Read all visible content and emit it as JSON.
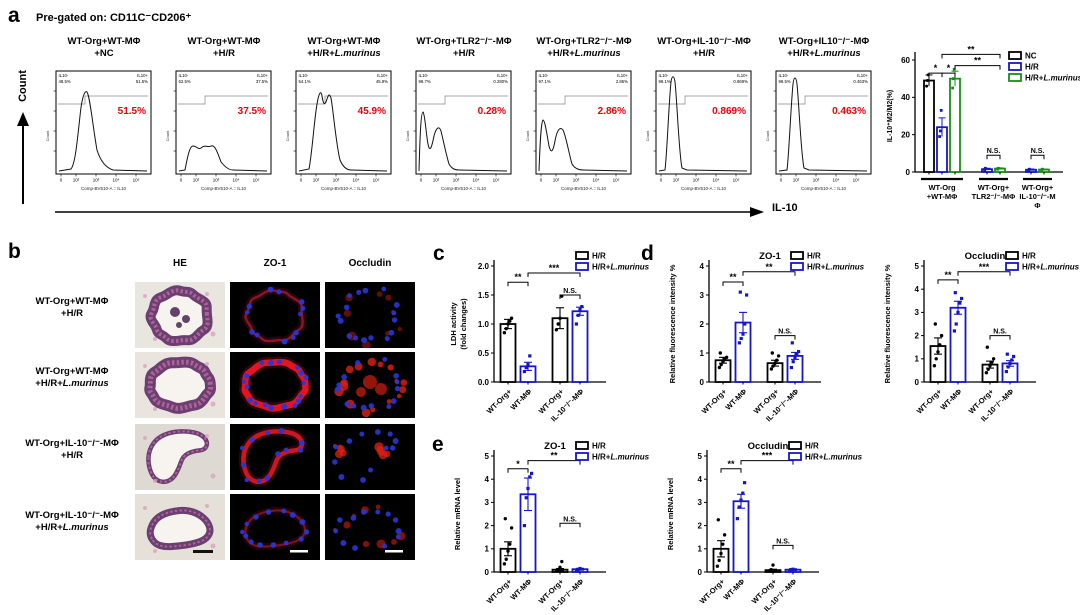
{
  "panel_a": {
    "label": "a",
    "pregate": "Pre-gated on: CD11C⁻CD206⁺",
    "count_label": "Count",
    "xarrow_label": "IL-10",
    "flow_xaxis": "Comp-BV510-A :: IL10",
    "flow_count_label": "Count",
    "flow_xticks": [
      "0",
      "10²",
      "10³",
      "10⁴",
      "10⁵"
    ],
    "flow_plots": [
      {
        "title1": "WT-Org+WT-MΦ",
        "title2": "+NC",
        "title2_italic": "",
        "neg_label": "IL10-",
        "neg_pct": "48.5%",
        "pos_label": "IL10+",
        "pos_pct": "51.5%",
        "main_pct": "51.5%",
        "shape": "broad"
      },
      {
        "title1": "WT-Org+WT-MΦ",
        "title2": "+H/R",
        "title2_italic": "",
        "neg_label": "IL10-",
        "neg_pct": "62.5%",
        "pos_label": "IL10+",
        "pos_pct": "37.5%",
        "main_pct": "37.5%",
        "shape": "low"
      },
      {
        "title1": "WT-Org+WT-MΦ",
        "title2": "+H/R+",
        "title2_italic": "L.murinus",
        "neg_label": "IL10-",
        "neg_pct": "54.1%",
        "pos_label": "IL10+",
        "pos_pct": "45.9%",
        "main_pct": "45.9%",
        "shape": "notched"
      },
      {
        "title1": "WT-Org+TLR2⁻/⁻-MΦ",
        "title2": "+H/R",
        "title2_italic": "",
        "neg_label": "IL10-",
        "neg_pct": "99.7%",
        "pos_label": "IL10+",
        "pos_pct": "0.280%",
        "main_pct": "0.28%",
        "shape": "smallbimodal"
      },
      {
        "title1": "WT-Org+TLR2⁻/⁻-MΦ",
        "title2": "+H/R+",
        "title2_italic": "L.murinus",
        "neg_label": "IL10-",
        "neg_pct": "97.1%",
        "pos_label": "IL10+",
        "pos_pct": "2.86%",
        "main_pct": "2.86%",
        "shape": "bimodal"
      },
      {
        "title1": "WT-Org+IL-10⁻/⁻-MΦ",
        "title2": "+H/R",
        "title2_italic": "",
        "neg_label": "IL10-",
        "neg_pct": "99.1%",
        "pos_label": "IL10+",
        "pos_pct": "0.869%",
        "main_pct": "0.869%",
        "shape": "tall"
      },
      {
        "title1": "WT-Org+IL10⁻/⁻-MΦ",
        "title2": "+H/R+",
        "title2_italic": "L.murinus",
        "neg_label": "IL10-",
        "neg_pct": "99.5%",
        "pos_label": "IL10+",
        "pos_pct": "0.463%",
        "main_pct": "0.463%",
        "shape": "tall2"
      }
    ]
  },
  "panel_b": {
    "label": "b",
    "columns": [
      "HE",
      "ZO-1",
      "Occludin"
    ],
    "rows": [
      {
        "label1": "WT-Org+WT-MΦ",
        "label2": "+H/R",
        "label2_italic": ""
      },
      {
        "label1": "WT-Org+WT-MΦ",
        "label2": "+H/R+",
        "label2_italic": "L.murinus"
      },
      {
        "label1": "WT-Org+IL-10⁻/⁻-MΦ",
        "label2": "+H/R",
        "label2_italic": ""
      },
      {
        "label1": "WT-Org+IL-10⁻/⁻-MΦ",
        "label2": "+H/R+",
        "label2_italic": "L.murinus"
      }
    ]
  },
  "panel_letters": {
    "c": "c",
    "d": "d",
    "e": "e"
  },
  "chart_data": [
    {
      "type": "bar",
      "id": "a",
      "kind": "grouped",
      "ylabel": [
        "IL-10⁺M2/M2(%)"
      ],
      "ylim": [
        0,
        60
      ],
      "yticks": [
        "0",
        "20",
        "40",
        "60"
      ],
      "legend": [
        {
          "plain": "NC",
          "italic": "",
          "color": "#000000"
        },
        {
          "plain": "H/R",
          "italic": "",
          "color": "#1515cc"
        },
        {
          "plain": "H/R+",
          "italic": "L.murinus",
          "color": "#149114"
        }
      ],
      "groups": [
        {
          "lines": [
            "WT-Org",
            "+WT-MΦ"
          ]
        },
        {
          "lines": [
            "WT-Org+",
            "TLR2⁻/⁻-MΦ"
          ]
        },
        {
          "lines": [
            "WT-Org+",
            "IL-10⁻/⁻-M",
            "Φ"
          ]
        }
      ],
      "bars": [
        {
          "g": 0,
          "s": 0,
          "v": 49,
          "e": 3,
          "dots": [
            46,
            49,
            52
          ]
        },
        {
          "g": 0,
          "s": 1,
          "v": 24,
          "e": 5,
          "dots": [
            19,
            22,
            33
          ]
        },
        {
          "g": 0,
          "s": 2,
          "v": 50,
          "e": 4,
          "dots": [
            45,
            50,
            55
          ]
        },
        {
          "g": 1,
          "s": 1,
          "v": 1.5,
          "e": 0.5,
          "dots": [
            1,
            2
          ]
        },
        {
          "g": 1,
          "s": 2,
          "v": 1.8,
          "e": 0.4,
          "dots": [
            1.5,
            2
          ]
        },
        {
          "g": 2,
          "s": 1,
          "v": 1.2,
          "e": 0.4,
          "dots": [
            1,
            1.5
          ]
        },
        {
          "g": 2,
          "s": 2,
          "v": 1.3,
          "e": 0.3,
          "dots": [
            1,
            1.5
          ]
        }
      ],
      "brackets": [
        {
          "a": 0,
          "b": 1,
          "label": "*",
          "vy": 53
        },
        {
          "a": 1,
          "b": 2,
          "label": "*",
          "vy": 53
        },
        {
          "a": 1,
          "b": 4,
          "label": "**",
          "vy": 63
        },
        {
          "a": 2,
          "b": 4,
          "label": "**",
          "vy": 57
        },
        {
          "a": 3,
          "b": 4,
          "label": "N.S.",
          "vy": 9
        },
        {
          "a": 5,
          "b": 6,
          "label": "N.S.",
          "vy": 9
        }
      ]
    },
    {
      "type": "bar",
      "id": "c",
      "kind": "pairs",
      "title": "",
      "ylabel": [
        "LDH activity",
        "(fold changes)"
      ],
      "ylim": [
        0,
        2
      ],
      "yticks": [
        "0.0",
        "0.5",
        "1.0",
        "1.5",
        "2.0"
      ],
      "categories": [
        "WT-Org+",
        "WT-MΦ",
        "WT-Org+",
        "IL-10⁻/⁻-MΦ"
      ],
      "legend": [
        {
          "plain": "H/R",
          "italic": "",
          "color": "#000000"
        },
        {
          "plain": "H/R+",
          "italic": "L.murinus",
          "color": "#1515cc"
        }
      ],
      "colors": [
        "#000000",
        "#1515cc",
        "#000000",
        "#1515cc"
      ],
      "values": [
        1.0,
        0.27,
        1.1,
        1.22
      ],
      "errors": [
        0.08,
        0.07,
        0.18,
        0.07
      ],
      "dots": [
        [
          0.85,
          0.92,
          1.0,
          1.05,
          1.1
        ],
        [
          0.18,
          0.25,
          0.3,
          0.45
        ],
        [
          0.9,
          1.0,
          1.1,
          1.48
        ],
        [
          1.0,
          1.15,
          1.25,
          1.3
        ]
      ],
      "brackets": [
        {
          "a": 0,
          "b": 1,
          "label": "**",
          "vy": 1.72
        },
        {
          "a": 1,
          "b": 3,
          "label": "***",
          "vy": 1.88
        },
        {
          "a": 2,
          "b": 3,
          "label": "N.S.",
          "vy": 1.5
        }
      ]
    },
    {
      "type": "bar",
      "id": "d1",
      "kind": "pairs",
      "title": "ZO-1",
      "ylabel": [
        "Relative fluorescence intensity %"
      ],
      "ylim": [
        0,
        4
      ],
      "yticks": [
        "0",
        "1",
        "2",
        "3",
        "4"
      ],
      "categories": [
        "WT-Org+",
        "WT-MΦ",
        "WT-Org+",
        "IL-10⁻/⁻-MΦ"
      ],
      "legend": [
        {
          "plain": "H/R",
          "italic": "",
          "color": "#000000"
        },
        {
          "plain": "H/R+",
          "italic": "L.murinus",
          "color": "#1515cc"
        }
      ],
      "colors": [
        "#000000",
        "#1515cc",
        "#000000",
        "#1515cc"
      ],
      "values": [
        0.75,
        2.05,
        0.65,
        0.9
      ],
      "errors": [
        0.1,
        0.35,
        0.1,
        0.12
      ],
      "dots": [
        [
          0.5,
          0.6,
          0.7,
          0.78,
          0.85,
          1.0
        ],
        [
          1.35,
          1.5,
          1.65,
          2.0,
          3.0,
          3.1
        ],
        [
          0.45,
          0.55,
          0.65,
          0.75,
          0.9,
          1.0
        ],
        [
          0.5,
          0.7,
          0.85,
          0.95,
          1.05,
          1.35
        ]
      ],
      "brackets": [
        {
          "a": 0,
          "b": 1,
          "label": "**",
          "vy": 3.45
        },
        {
          "a": 1,
          "b": 3,
          "label": "**",
          "vy": 3.8
        },
        {
          "a": 2,
          "b": 3,
          "label": "N.S.",
          "vy": 1.6
        }
      ]
    },
    {
      "type": "bar",
      "id": "d2",
      "kind": "pairs",
      "title": "Occludin",
      "ylabel": [
        "Relative fluorescence intensity %"
      ],
      "ylim": [
        0,
        5
      ],
      "yticks": [
        "0",
        "1",
        "2",
        "3",
        "4",
        "5"
      ],
      "categories": [
        "WT-Org+",
        "WT-MΦ",
        "WT-Org+",
        "IL-10⁻/⁻-MΦ"
      ],
      "legend": [
        {
          "plain": "H/R",
          "italic": "",
          "color": "#000000"
        },
        {
          "plain": "H/R+",
          "italic": "L.murinus",
          "color": "#1515cc"
        }
      ],
      "colors": [
        "#000000",
        "#1515cc",
        "#000000",
        "#1515cc"
      ],
      "values": [
        1.55,
        3.2,
        0.75,
        0.8
      ],
      "errors": [
        0.35,
        0.28,
        0.15,
        0.12
      ],
      "dots": [
        [
          0.7,
          1.0,
          1.3,
          1.6,
          2.0,
          2.5
        ],
        [
          2.2,
          2.5,
          3.0,
          3.4,
          3.6,
          3.85
        ],
        [
          0.4,
          0.55,
          0.7,
          0.85,
          1.0,
          1.5
        ],
        [
          0.45,
          0.65,
          0.8,
          0.95,
          1.1,
          1.2
        ]
      ],
      "brackets": [
        {
          "a": 0,
          "b": 1,
          "label": "**",
          "vy": 4.4
        },
        {
          "a": 1,
          "b": 3,
          "label": "***",
          "vy": 4.75
        },
        {
          "a": 2,
          "b": 3,
          "label": "N.S.",
          "vy": 2.0
        }
      ]
    },
    {
      "type": "bar",
      "id": "e1",
      "kind": "pairs",
      "title": "ZO-1",
      "ylabel": [
        "Relative mRNA level"
      ],
      "ylim": [
        0,
        5
      ],
      "yticks": [
        "0",
        "1",
        "2",
        "3",
        "4",
        "5"
      ],
      "categories": [
        "WT-Org+",
        "WT-MΦ",
        "WT-Org+",
        "IL-10⁻/⁻-MΦ"
      ],
      "legend": [
        {
          "plain": "H/R",
          "italic": "",
          "color": "#000000"
        },
        {
          "plain": "H/R+",
          "italic": "L.murinus",
          "color": "#1515cc"
        }
      ],
      "colors": [
        "#000000",
        "#1515cc",
        "#000000",
        "#1515cc"
      ],
      "values": [
        1.0,
        3.35,
        0.1,
        0.12
      ],
      "errors": [
        0.3,
        0.7,
        0.05,
        0.04
      ],
      "dots": [
        [
          0.35,
          0.55,
          0.9,
          1.2,
          1.9,
          2.3
        ],
        [
          2.0,
          3.2,
          3.6,
          4.1,
          4.25
        ],
        [
          0.05,
          0.1,
          0.2,
          0.45
        ],
        [
          0.08,
          0.1,
          0.15
        ]
      ],
      "brackets": [
        {
          "a": 0,
          "b": 1,
          "label": "*",
          "vy": 4.45
        },
        {
          "a": 1,
          "b": 3,
          "label": "**",
          "vy": 4.8
        },
        {
          "a": 2,
          "b": 3,
          "label": "N.S.",
          "vy": 2.1
        }
      ]
    },
    {
      "type": "bar",
      "id": "e2",
      "kind": "pairs",
      "title": "Occludin",
      "ylabel": [
        "Relative mRNA level"
      ],
      "ylim": [
        0,
        5
      ],
      "yticks": [
        "0",
        "1",
        "2",
        "3",
        "4",
        "5"
      ],
      "categories": [
        "WT-Org+",
        "WT-MΦ",
        "WT-Org+",
        "IL-10⁻/⁻-MΦ"
      ],
      "legend": [
        {
          "plain": "H/R",
          "italic": "",
          "color": "#000000"
        },
        {
          "plain": "H/R+",
          "italic": "L.murinus",
          "color": "#1515cc"
        }
      ],
      "colors": [
        "#000000",
        "#1515cc",
        "#000000",
        "#1515cc"
      ],
      "values": [
        1.0,
        3.05,
        0.08,
        0.1
      ],
      "errors": [
        0.35,
        0.3,
        0.04,
        0.04
      ],
      "dots": [
        [
          0.25,
          0.5,
          0.8,
          1.2,
          1.6,
          2.25
        ],
        [
          2.3,
          2.8,
          3.1,
          3.4,
          3.85
        ],
        [
          0.04,
          0.1,
          0.3
        ],
        [
          0.05,
          0.1,
          0.12
        ]
      ],
      "brackets": [
        {
          "a": 0,
          "b": 1,
          "label": "**",
          "vy": 4.45
        },
        {
          "a": 1,
          "b": 3,
          "label": "***",
          "vy": 4.8
        },
        {
          "a": 2,
          "b": 3,
          "label": "N.S.",
          "vy": 1.15
        }
      ]
    }
  ]
}
